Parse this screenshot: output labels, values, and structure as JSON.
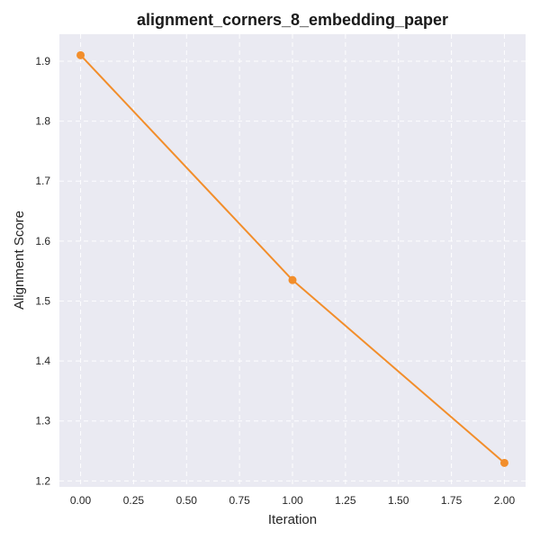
{
  "chart_data": {
    "type": "line",
    "title": "alignment_corners_8_embedding_paper",
    "xlabel": "Iteration",
    "ylabel": "Alignment Score",
    "x": [
      0,
      1,
      2
    ],
    "series": [
      {
        "values": [
          1.91,
          1.535,
          1.23
        ],
        "color": "#f28e2b"
      }
    ],
    "xlim": [
      -0.1,
      2.1
    ],
    "ylim": [
      1.19,
      1.945
    ],
    "xticks": [
      0.0,
      0.25,
      0.5,
      0.75,
      1.0,
      1.25,
      1.5,
      1.75,
      2.0
    ],
    "xtick_labels": [
      "0.00",
      "0.25",
      "0.50",
      "0.75",
      "1.00",
      "1.25",
      "1.50",
      "1.75",
      "2.00"
    ],
    "yticks": [
      1.2,
      1.3,
      1.4,
      1.5,
      1.6,
      1.7,
      1.8,
      1.9
    ],
    "ytick_labels": [
      "1.2",
      "1.3",
      "1.4",
      "1.5",
      "1.6",
      "1.7",
      "1.8",
      "1.9"
    ],
    "grid": true,
    "background_color": "#eaeaf2"
  }
}
